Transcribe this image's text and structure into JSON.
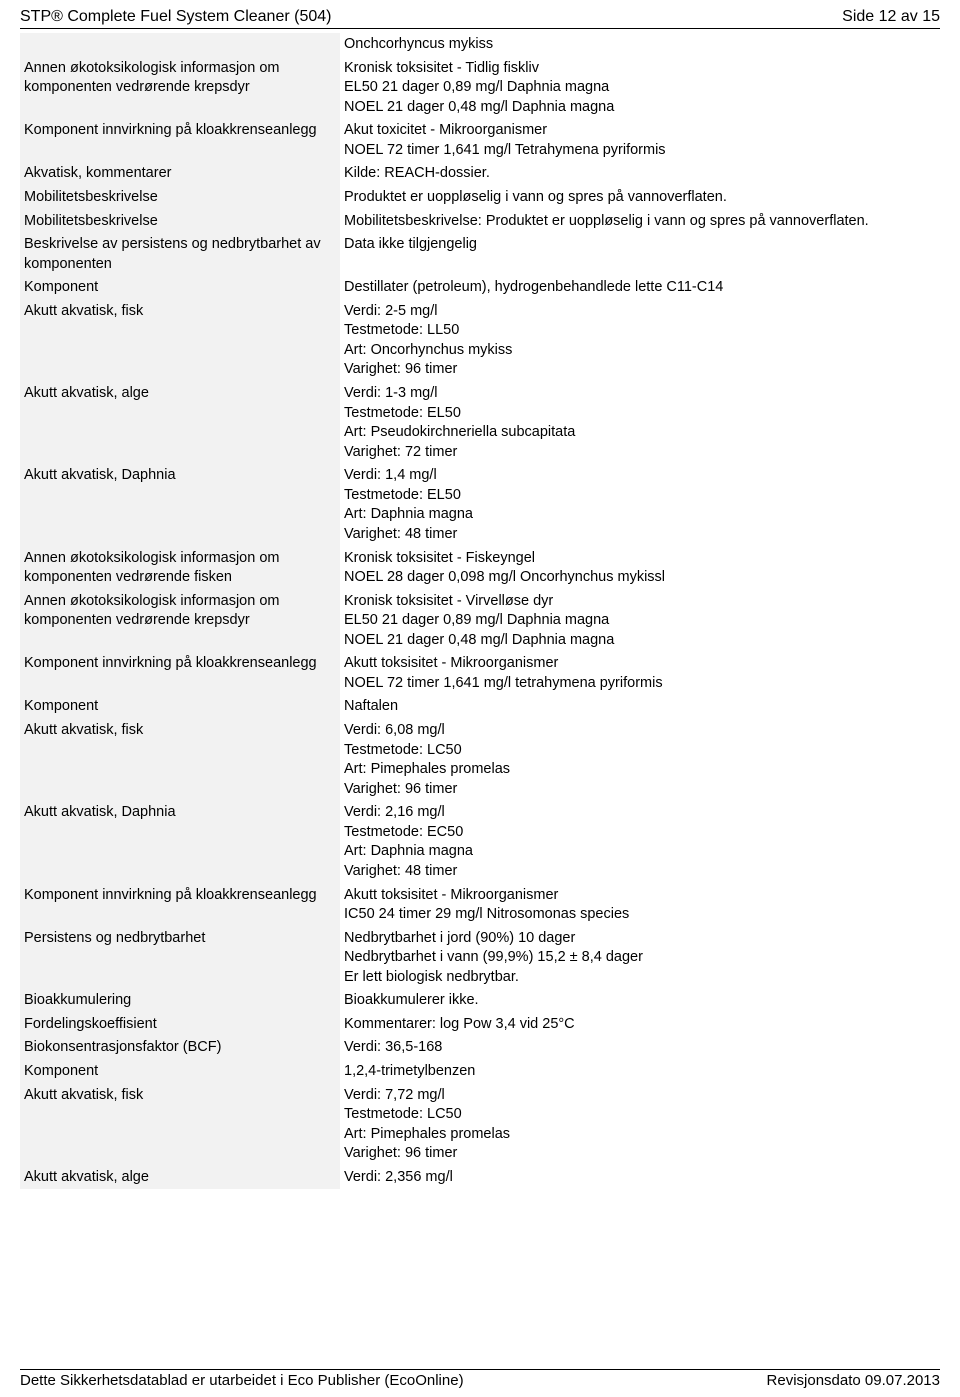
{
  "header": {
    "title": "STP® Complete Fuel System Cleaner (504)",
    "page": "Side 12 av 15"
  },
  "footer": {
    "left": "Dette Sikkerhetsdatablad er utarbeidet i Eco Publisher (EcoOnline)",
    "right": "Revisjonsdato 09.07.2013"
  },
  "rows": [
    {
      "label": "",
      "value": "Onchcorhyncus mykiss"
    },
    {
      "label": "Annen økotoksikologisk informasjon om komponenten vedrørende krepsdyr",
      "value": "Kronisk toksisitet - Tidlig fiskliv\nEL50 21 dager 0,89 mg/l Daphnia magna\nNOEL 21 dager 0,48 mg/l Daphnia magna"
    },
    {
      "label": "Komponent innvirkning på kloakkrenseanlegg",
      "value": "Akut toxicitet - Mikroorganismer\nNOEL 72 timer 1,641 mg/l Tetrahymena pyriformis"
    },
    {
      "label": "Akvatisk, kommentarer",
      "value": "Kilde: REACH-dossier."
    },
    {
      "label": "Mobilitetsbeskrivelse",
      "value": "Produktet er uoppløselig i vann og spres på vannoverflaten."
    },
    {
      "label": "Mobilitetsbeskrivelse",
      "value": "Mobilitetsbeskrivelse: Produktet er uoppløselig i vann og spres på vannoverflaten."
    },
    {
      "label": "Beskrivelse av persistens og nedbrytbarhet av komponenten",
      "value": "Data ikke tilgjengelig"
    },
    {
      "label": "Komponent",
      "value": "Destillater (petroleum), hydrogenbehandlede lette C11-C14"
    },
    {
      "label": "Akutt akvatisk, fisk",
      "value": "Verdi: 2-5 mg/l\nTestmetode: LL50\nArt: Oncorhynchus mykiss\nVarighet: 96 timer"
    },
    {
      "label": "Akutt akvatisk, alge",
      "value": "Verdi: 1-3 mg/l\nTestmetode: EL50\nArt: Pseudokirchneriella subcapitata\nVarighet: 72 timer"
    },
    {
      "label": "Akutt akvatisk, Daphnia",
      "value": "Verdi: 1,4 mg/l\nTestmetode: EL50\nArt: Daphnia magna\nVarighet: 48 timer"
    },
    {
      "label": "Annen økotoksikologisk informasjon om komponenten vedrørende fisken",
      "value": "Kronisk toksisitet - Fiskeyngel\nNOEL 28 dager 0,098 mg/l Oncorhynchus mykissl"
    },
    {
      "label": "Annen økotoksikologisk informasjon om komponenten vedrørende krepsdyr",
      "value": "Kronisk toksisitet - Virvelløse dyr\nEL50 21 dager 0,89 mg/l Daphnia magna\nNOEL 21 dager 0,48 mg/l Daphnia magna"
    },
    {
      "label": "Komponent innvirkning på kloakkrenseanlegg",
      "value": "Akutt toksisitet - Mikroorganismer\nNOEL 72 timer 1,641 mg/l tetrahymena pyriformis"
    },
    {
      "label": "Komponent",
      "value": "Naftalen"
    },
    {
      "label": "Akutt akvatisk, fisk",
      "value": "Verdi: 6,08 mg/l\nTestmetode: LC50\nArt: Pimephales promelas\nVarighet: 96 timer"
    },
    {
      "label": "Akutt akvatisk, Daphnia",
      "value": "Verdi: 2,16 mg/l\nTestmetode: EC50\nArt: Daphnia magna\nVarighet: 48 timer"
    },
    {
      "label": "Komponent innvirkning på kloakkrenseanlegg",
      "value": "Akutt toksisitet - Mikroorganismer\nIC50 24 timer 29 mg/l Nitrosomonas species"
    },
    {
      "label": "Persistens og nedbrytbarhet",
      "value": "Nedbrytbarhet i jord (90%) 10 dager\nNedbrytbarhet i vann (99,9%) 15,2 ± 8,4 dager\nEr lett biologisk nedbrytbar."
    },
    {
      "label": "Bioakkumulering",
      "value": "Bioakkumulerer ikke."
    },
    {
      "label": "Fordelingskoeffisient",
      "value": "Kommentarer: log Pow 3,4 vid 25°C"
    },
    {
      "label": "Biokonsentrasjonsfaktor (BCF)",
      "value": "Verdi: 36,5-168"
    },
    {
      "label": "Komponent",
      "value": "1,2,4-trimetylbenzen"
    },
    {
      "label": "Akutt akvatisk, fisk",
      "value": "Verdi: 7,72 mg/l\nTestmetode: LC50\nArt: Pimephales promelas\nVarighet: 96 timer"
    },
    {
      "label": "Akutt akvatisk, alge",
      "value": "Verdi: 2,356 mg/l"
    }
  ]
}
